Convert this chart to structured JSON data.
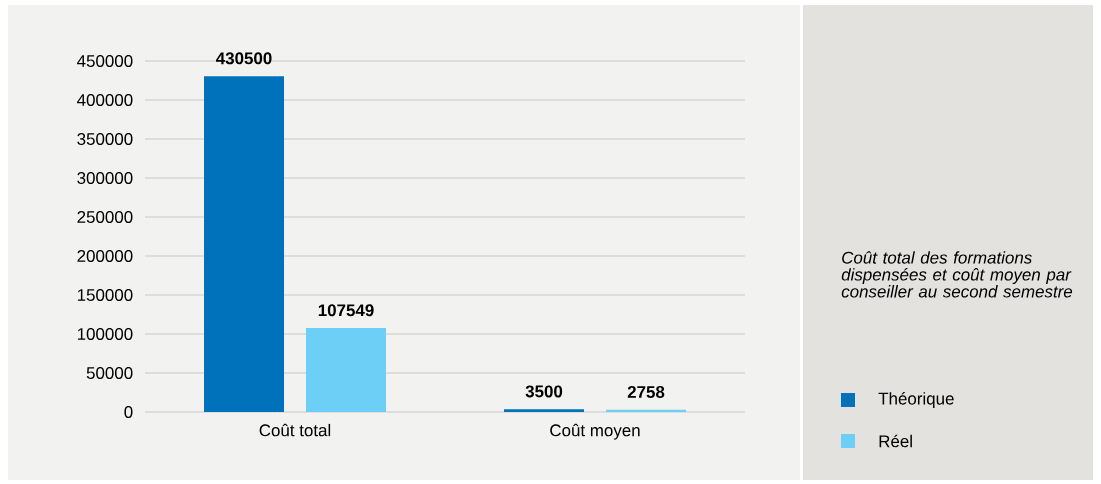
{
  "chart_data": {
    "type": "bar",
    "title": "Coût total des formations dispensées et coût moyen par conseiller au second semestre",
    "categories": [
      "Coût total",
      "Coût moyen"
    ],
    "series": [
      {
        "name": "Théorique",
        "color": "#0072bc",
        "values": [
          430500,
          3500
        ]
      },
      {
        "name": "Réel",
        "color": "#6dcff6",
        "values": [
          107549,
          2758
        ]
      }
    ],
    "ylim": [
      0,
      450000
    ],
    "yticks": [
      0,
      50000,
      100000,
      150000,
      200000,
      250000,
      300000,
      350000,
      400000,
      450000
    ],
    "grid": "y",
    "legend": "right",
    "data_labels": true
  }
}
